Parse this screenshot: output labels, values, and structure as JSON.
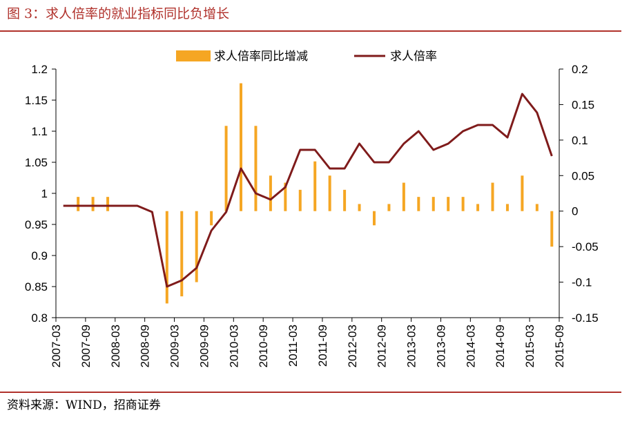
{
  "figure": {
    "title": "图 3：求人倍率的就业指标同比负增长",
    "source": "资料来源：WIND，招商证券"
  },
  "colors": {
    "accent": "#b0312b",
    "bar": "#f5a623",
    "line": "#7f1b1b"
  },
  "chart_data": {
    "type": "bar+line",
    "categories": [
      "2007-03",
      "2007-06",
      "2007-09",
      "2007-12",
      "2008-03",
      "2008-06",
      "2008-09",
      "2008-12",
      "2009-03",
      "2009-06",
      "2009-09",
      "2009-12",
      "2010-03",
      "2010-06",
      "2010-09",
      "2010-12",
      "2011-03",
      "2011-06",
      "2011-09",
      "2011-12",
      "2012-03",
      "2012-06",
      "2012-09",
      "2012-12",
      "2013-03",
      "2013-06",
      "2013-09",
      "2013-12",
      "2014-03",
      "2014-06",
      "2014-09",
      "2014-12",
      "2015-03",
      "2015-06"
    ],
    "x_tick_labels": [
      "2007-03",
      "2007-09",
      "2008-03",
      "2008-09",
      "2009-03",
      "2009-09",
      "2010-03",
      "2010-09",
      "2011-03",
      "2011-09",
      "2012-03",
      "2012-09",
      "2013-03",
      "2013-09",
      "2014-03",
      "2014-09",
      "2015-03",
      "2015-09"
    ],
    "series": [
      {
        "name": "求人倍率同比增减",
        "kind": "bar",
        "axis": "right",
        "values": [
          0.0,
          0.02,
          0.02,
          0.02,
          0.0,
          0.0,
          0.0,
          -0.13,
          -0.12,
          -0.1,
          -0.02,
          0.12,
          0.18,
          0.12,
          0.05,
          0.04,
          0.03,
          0.07,
          0.05,
          0.03,
          0.01,
          -0.02,
          0.01,
          0.04,
          0.02,
          0.02,
          0.02,
          0.02,
          0.01,
          0.04,
          0.01,
          0.05,
          0.01,
          -0.05
        ]
      },
      {
        "name": "求人倍率",
        "kind": "line",
        "axis": "left",
        "values": [
          0.98,
          0.98,
          0.98,
          0.98,
          0.98,
          0.98,
          0.97,
          0.85,
          0.86,
          0.88,
          0.94,
          0.97,
          1.04,
          1.0,
          0.99,
          1.01,
          1.07,
          1.07,
          1.04,
          1.04,
          1.08,
          1.05,
          1.05,
          1.08,
          1.1,
          1.07,
          1.08,
          1.1,
          1.11,
          1.11,
          1.09,
          1.16,
          1.13,
          1.06
        ]
      }
    ],
    "y_left": {
      "min": 0.8,
      "max": 1.2,
      "ticks": [
        "0.8",
        "0.85",
        "0.9",
        "0.95",
        "1",
        "1.05",
        "1.1",
        "1.15",
        "1.2"
      ]
    },
    "y_right": {
      "min": -0.15,
      "max": 0.2,
      "ticks": [
        "-0.15",
        "-0.1",
        "-0.05",
        "0",
        "0.05",
        "0.1",
        "0.15",
        "0.2"
      ]
    },
    "grid": false,
    "legend_position": "top-center"
  }
}
